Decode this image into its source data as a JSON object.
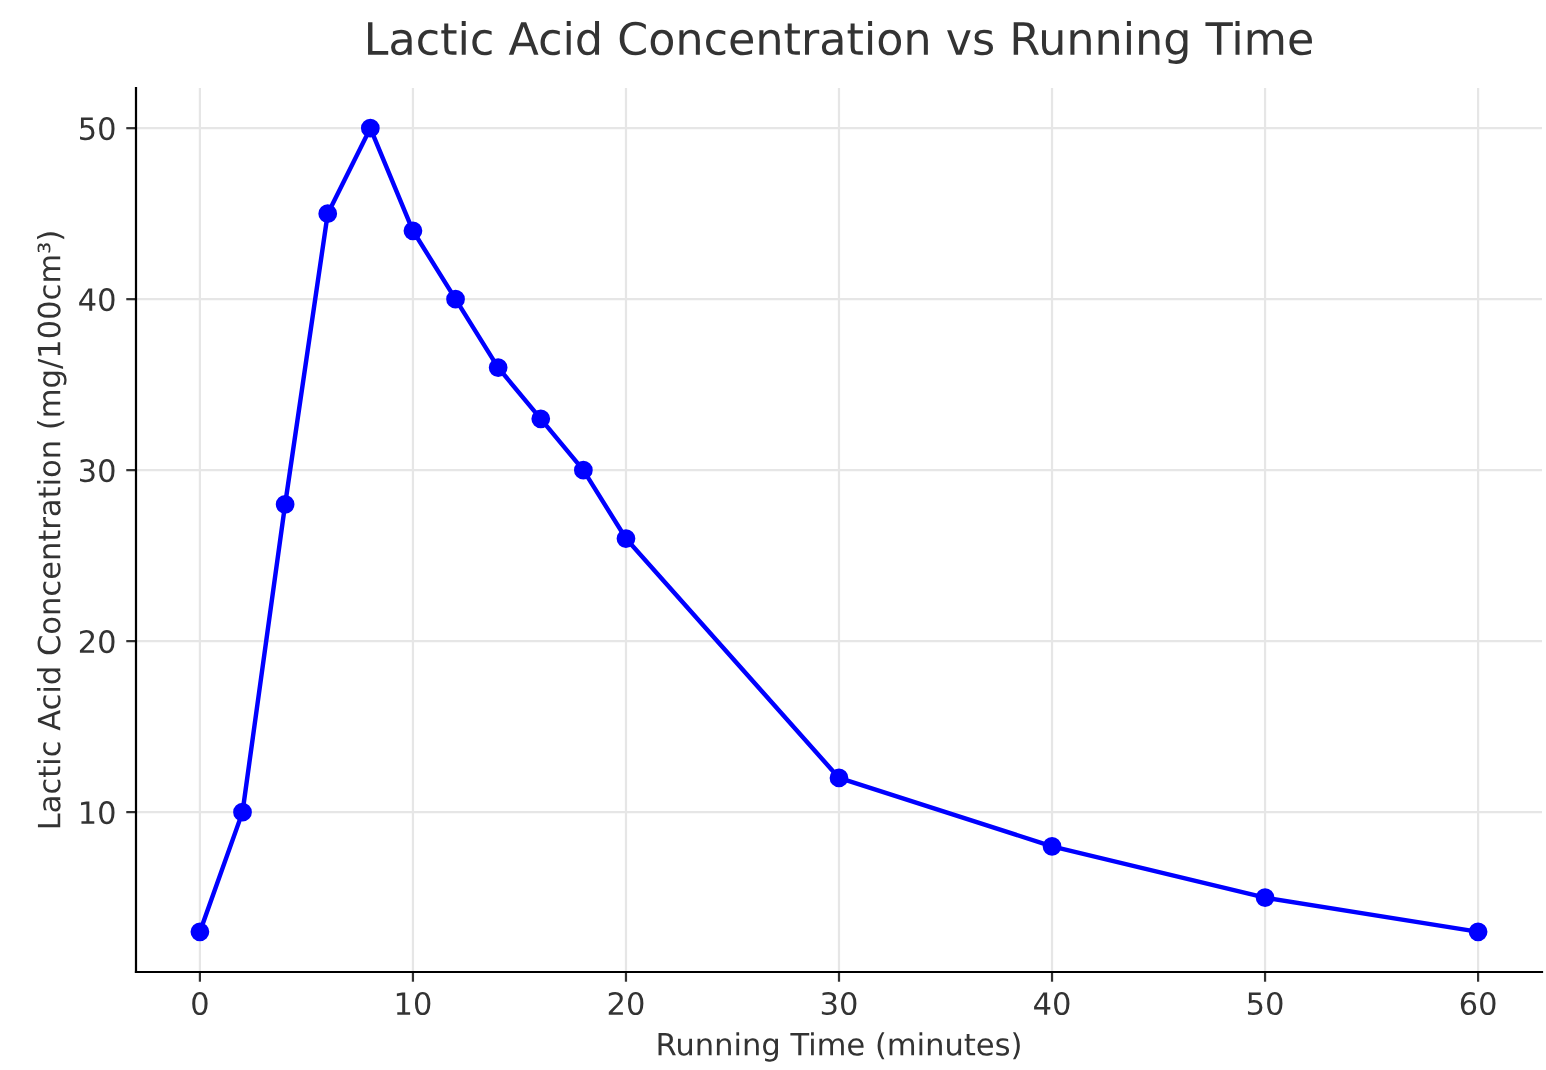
{
  "chart_data": {
    "type": "line",
    "title": "Lactic Acid Concentration vs Running Time",
    "xlabel": "Running Time (minutes)",
    "ylabel": "Lactic Acid Concentration (mg/100cm³)",
    "x": [
      0,
      2,
      4,
      6,
      8,
      10,
      12,
      14,
      16,
      18,
      20,
      30,
      40,
      50,
      60
    ],
    "series": [
      {
        "color": "#0000ff",
        "values": [
          3,
          10,
          28,
          45,
          50,
          44,
          40,
          36,
          33,
          30,
          26,
          12,
          8,
          5,
          3
        ]
      }
    ],
    "xlim": [
      -3,
      63
    ],
    "ylim": [
      0.65,
      52.35
    ],
    "xticks": [
      0,
      10,
      20,
      30,
      40,
      50,
      60
    ],
    "yticks": [
      10,
      20,
      30,
      40,
      50
    ],
    "grid": true,
    "marker": "circle",
    "line_style": "solid"
  }
}
